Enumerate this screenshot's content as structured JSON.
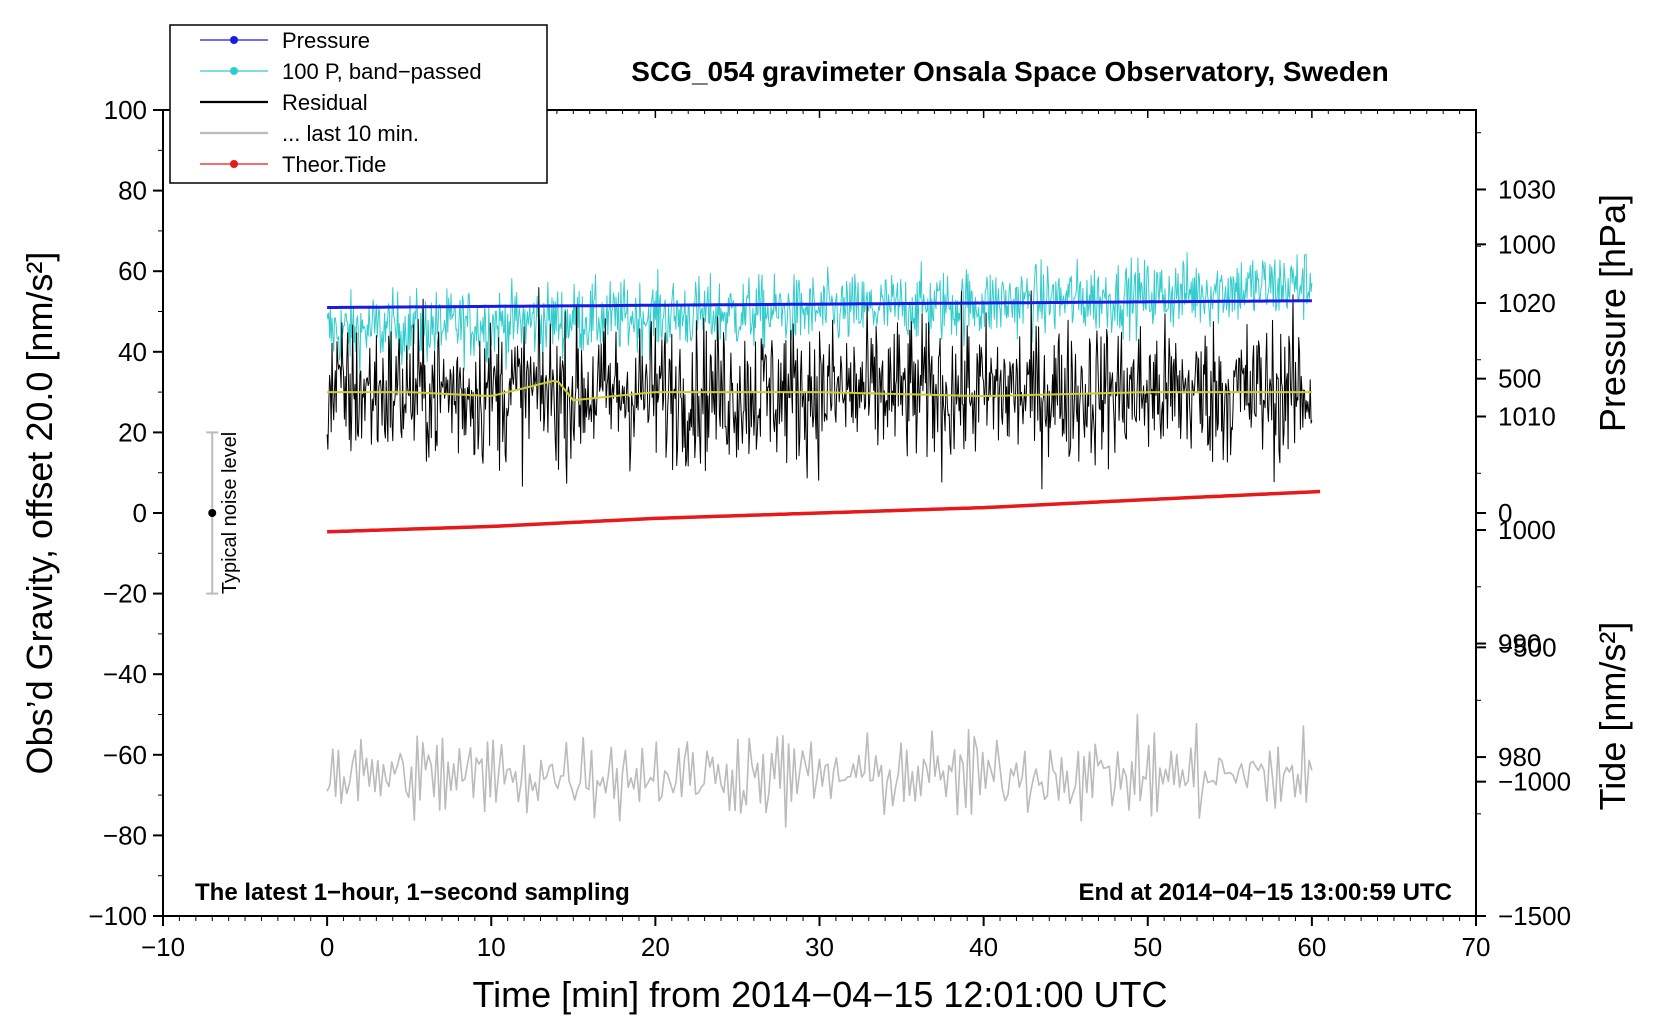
{
  "chart_data": {
    "type": "line",
    "title": "SCG_054 gravimeter Onsala Space Observatory, Sweden",
    "xlabel": "Time [min] from 2014−04−15 12:01:00 UTC",
    "ylabel_left": "Obs’d Gravity, offset 20.0 [nm/s²]",
    "ylabel_right_pressure": "Pressure [hPa]",
    "ylabel_right_tide": "Tide [nm/s²]",
    "xlim": [
      -10,
      70
    ],
    "ylim_left": [
      -100,
      100
    ],
    "ylim_pressure": [
      966,
      1037
    ],
    "ylim_tide": [
      -1500,
      1500
    ],
    "x_ticks": [
      -10,
      0,
      10,
      20,
      30,
      40,
      50,
      60,
      70
    ],
    "x_tick_labels": [
      "−10",
      "0",
      "10",
      "20",
      "30",
      "40",
      "50",
      "60",
      "70"
    ],
    "y_ticks_left": [
      -100,
      -80,
      -60,
      -40,
      -20,
      0,
      20,
      40,
      60,
      80,
      100
    ],
    "y_tick_labels_left": [
      "−100",
      "−80",
      "−60",
      "−40",
      "−20",
      "0",
      "20",
      "40",
      "60",
      "80",
      "100"
    ],
    "pressure_ticks": [
      980,
      990,
      1000,
      1010,
      1020,
      1030
    ],
    "pressure_tick_labels": [
      "980",
      "990",
      "1000",
      "1010",
      "1020",
      "1030"
    ],
    "tide_ticks": [
      -1500,
      -1000,
      -500,
      0,
      500,
      1000
    ],
    "tide_tick_labels": [
      "−1500",
      "−1000",
      "−500",
      "0",
      "500",
      "1000"
    ],
    "legend": [
      {
        "label": "Pressure",
        "color": "#1a1ae6",
        "marker": true
      },
      {
        "label": "100 P, band−passed",
        "color": "#33cccc",
        "marker": true
      },
      {
        "label": "Residual",
        "color": "#000000",
        "marker": false
      },
      {
        "label": "... last 10 min.",
        "color": "#bbbbbb",
        "marker": false
      },
      {
        "label": "Theor.Tide",
        "color": "#e61a1a",
        "marker": true
      }
    ],
    "annotation_left": "The latest 1−hour, 1−second sampling",
    "annotation_right": "End at 2014−04−15 13:00:59 UTC",
    "noise_bar": {
      "x": -7,
      "center": 0,
      "low": -20,
      "high": 20,
      "label": "Typical noise level"
    },
    "series": [
      {
        "name": "Pressure",
        "axis": "pressure",
        "color": "#1a1ae6",
        "x": [
          0,
          10,
          20,
          30,
          40,
          50,
          60
        ],
        "values": [
          1019.6,
          1019.7,
          1019.8,
          1019.9,
          1020.0,
          1020.1,
          1020.2
        ]
      },
      {
        "name": "100 P, band−passed",
        "axis": "left",
        "color": "#33cccc",
        "x": [
          0,
          10,
          20,
          30,
          40,
          50,
          60
        ],
        "values": [
          45,
          47,
          49,
          50,
          52,
          54,
          57
        ],
        "noise_amplitude": 6
      },
      {
        "name": "Residual",
        "axis": "left",
        "color": "#000000",
        "x": [
          0,
          10,
          20,
          30,
          40,
          50,
          60
        ],
        "values": [
          30,
          30,
          30,
          30,
          30,
          30,
          30
        ],
        "noise_amplitude": 12
      },
      {
        "name": "Residual (smoothed)",
        "axis": "left",
        "color": "#cccc33",
        "x": [
          0,
          5,
          10,
          14,
          15,
          20,
          30,
          40,
          50,
          60
        ],
        "values": [
          30,
          30,
          29,
          33,
          28,
          30,
          30,
          29,
          30,
          30
        ]
      },
      {
        "name": "... last 10 min.",
        "axis": "left",
        "color": "#bbbbbb",
        "x": [
          0,
          10,
          20,
          30,
          40,
          50,
          60
        ],
        "values": [
          -65,
          -65,
          -65,
          -65,
          -65,
          -65,
          -65
        ],
        "noise_amplitude": 12
      },
      {
        "name": "Theor.Tide",
        "axis": "tide",
        "color": "#e61a1a",
        "x": [
          0,
          10,
          20,
          30,
          40,
          50,
          60.5
        ],
        "values": [
          -70,
          -50,
          -20,
          0,
          20,
          50,
          80
        ]
      }
    ]
  }
}
